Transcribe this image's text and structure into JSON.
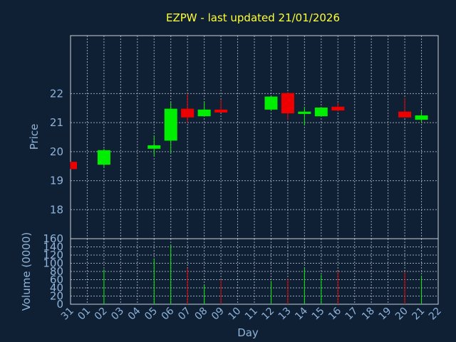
{
  "chart_data": {
    "type": "candlestick",
    "title": "EZPW - last updated 21/01/2026",
    "xlabel": "Day",
    "price_panel": {
      "ylabel": "Price",
      "yticks": [
        18,
        19,
        20,
        21,
        22
      ],
      "ylim": [
        17,
        24
      ]
    },
    "volume_panel": {
      "ylabel": "Volume (0000)",
      "yticks": [
        0,
        20,
        40,
        60,
        80,
        100,
        120,
        140,
        160
      ],
      "ylim": [
        0,
        160
      ]
    },
    "x_tick_labels": [
      "31",
      "01",
      "02",
      "03",
      "04",
      "05",
      "06",
      "07",
      "08",
      "09",
      "10",
      "11",
      "12",
      "13",
      "14",
      "15",
      "16",
      "17",
      "18",
      "19",
      "20",
      "21",
      "22"
    ],
    "candles": [
      {
        "day": "31",
        "open": 19.65,
        "close": 19.4,
        "high": 19.65,
        "low": 19.4,
        "volume": 0
      },
      {
        "day": "02",
        "open": 19.55,
        "close": 20.05,
        "high": 20.1,
        "low": 19.45,
        "volume": 85
      },
      {
        "day": "05",
        "open": 20.1,
        "close": 20.22,
        "high": 20.55,
        "low": 19.85,
        "volume": 112
      },
      {
        "day": "06",
        "open": 20.38,
        "close": 21.48,
        "high": 21.72,
        "low": 19.95,
        "volume": 145
      },
      {
        "day": "07",
        "open": 21.48,
        "close": 21.18,
        "high": 22.0,
        "low": 21.0,
        "volume": 88
      },
      {
        "day": "08",
        "open": 21.22,
        "close": 21.45,
        "high": 21.72,
        "low": 21.22,
        "volume": 48
      },
      {
        "day": "09",
        "open": 21.45,
        "close": 21.35,
        "high": 21.8,
        "low": 21.35,
        "volume": 60
      },
      {
        "day": "12",
        "open": 21.45,
        "close": 21.9,
        "high": 21.9,
        "low": 21.4,
        "volume": 57
      },
      {
        "day": "13",
        "open": 22.02,
        "close": 21.32,
        "high": 22.02,
        "low": 21.1,
        "volume": 62
      },
      {
        "day": "14",
        "open": 21.3,
        "close": 21.38,
        "high": 21.55,
        "low": 20.9,
        "volume": 88
      },
      {
        "day": "15",
        "open": 21.22,
        "close": 21.52,
        "high": 21.52,
        "low": 21.22,
        "volume": 72
      },
      {
        "day": "16",
        "open": 21.55,
        "close": 21.42,
        "high": 21.7,
        "low": 21.4,
        "volume": 80
      },
      {
        "day": "20",
        "open": 21.38,
        "close": 21.18,
        "high": 21.85,
        "low": 21.18,
        "volume": 78
      },
      {
        "day": "21",
        "open": 21.1,
        "close": 21.25,
        "high": 21.4,
        "low": 21.0,
        "volume": 70
      }
    ],
    "colors": {
      "background": "#0f2035",
      "up": "#00ee00",
      "down": "#ee0000",
      "grid": "#c8d0d8",
      "text": "#8fb3d9",
      "title": "#ffff33"
    },
    "grid": true
  }
}
